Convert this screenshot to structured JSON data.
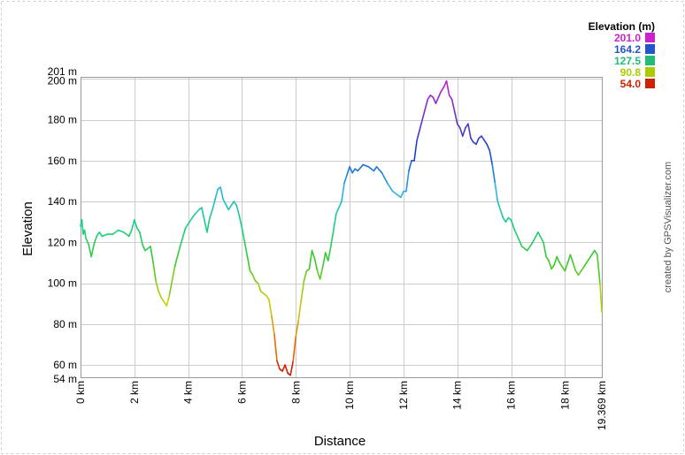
{
  "chart_data": {
    "type": "line",
    "xlabel": "Distance",
    "ylabel": "Elevation",
    "credit": "created by GPSVisualizer.com",
    "xlim": [
      0,
      19.369
    ],
    "ylim": [
      54,
      201
    ],
    "x_ticks": [
      0,
      2,
      4,
      6,
      8,
      10,
      12,
      14,
      16,
      18,
      19.369
    ],
    "x_tick_labels": [
      "0 km",
      "2 km",
      "4 km",
      "6 km",
      "8 km",
      "10 km",
      "12 km",
      "14 km",
      "16 km",
      "18 km",
      "19.369 km"
    ],
    "y_ticks": [
      54,
      60,
      80,
      100,
      120,
      140,
      160,
      180,
      200,
      201
    ],
    "y_tick_labels": [
      "54 m",
      "60 m",
      "80 m",
      "100 m",
      "120 m",
      "140 m",
      "160 m",
      "180 m",
      "200 m",
      "201 m"
    ],
    "grid": true,
    "legend": {
      "title": "Elevation (m)",
      "placement": "top-right",
      "entries": [
        {
          "label": "201.0",
          "color": "#cc22cc"
        },
        {
          "label": "164.2",
          "color": "#2255cc"
        },
        {
          "label": "127.5",
          "color": "#22bb77"
        },
        {
          "label": "90.8",
          "color": "#aacc00"
        },
        {
          "label": "54.0",
          "color": "#cc2200"
        }
      ]
    },
    "series": [
      {
        "x": [
          0,
          0.05,
          0.1,
          0.15,
          0.2,
          0.3,
          0.4,
          0.5,
          0.6,
          0.7,
          0.8,
          1.0,
          1.2,
          1.4,
          1.6,
          1.8,
          1.9,
          2.0,
          2.1,
          2.2,
          2.3,
          2.4,
          2.6,
          2.7,
          2.8,
          2.9,
          3.0,
          3.1,
          3.2,
          3.3,
          3.5,
          3.7,
          3.9,
          4.0,
          4.2,
          4.4,
          4.5,
          4.6,
          4.7,
          4.8,
          4.9,
          5.0,
          5.1,
          5.2,
          5.3,
          5.5,
          5.6,
          5.7,
          5.8,
          5.9,
          6.0,
          6.1,
          6.2,
          6.3,
          6.4,
          6.5,
          6.6,
          6.7,
          6.8,
          6.9,
          7.0,
          7.1,
          7.2,
          7.3,
          7.4,
          7.5,
          7.6,
          7.7,
          7.8,
          7.9,
          8.0,
          8.1,
          8.2,
          8.3,
          8.4,
          8.5,
          8.6,
          8.7,
          8.8,
          8.9,
          9.0,
          9.1,
          9.2,
          9.3,
          9.4,
          9.5,
          9.6,
          9.7,
          9.8,
          9.9,
          10.0,
          10.1,
          10.2,
          10.3,
          10.5,
          10.7,
          10.9,
          11.0,
          11.2,
          11.4,
          11.6,
          11.8,
          11.9,
          12.0,
          12.1,
          12.2,
          12.3,
          12.4,
          12.5,
          12.6,
          12.7,
          12.8,
          12.9,
          13.0,
          13.1,
          13.2,
          13.3,
          13.4,
          13.5,
          13.6,
          13.7,
          13.8,
          13.9,
          14.0,
          14.1,
          14.2,
          14.3,
          14.4,
          14.5,
          14.6,
          14.7,
          14.8,
          14.9,
          15.0,
          15.1,
          15.2,
          15.3,
          15.4,
          15.5,
          15.6,
          15.7,
          15.8,
          15.9,
          16.0,
          16.1,
          16.2,
          16.4,
          16.6,
          16.8,
          17.0,
          17.2,
          17.3,
          17.4,
          17.5,
          17.6,
          17.7,
          17.8,
          17.9,
          18.0,
          18.1,
          18.2,
          18.3,
          18.4,
          18.5,
          18.6,
          18.7,
          18.8,
          18.9,
          19.0,
          19.1,
          19.2,
          19.3,
          19.369
        ],
        "y": [
          128,
          131,
          124,
          126,
          122,
          119,
          113,
          119,
          123,
          125,
          123,
          124,
          124,
          126,
          125,
          123,
          126,
          131,
          127,
          125,
          119,
          116,
          118,
          110,
          101,
          96,
          93,
          91,
          89,
          94,
          108,
          118,
          127,
          129,
          133,
          136,
          137,
          131,
          125,
          132,
          136,
          141,
          146,
          147,
          141,
          136,
          138,
          140,
          138,
          133,
          127,
          120,
          113,
          106,
          104,
          101,
          100,
          96,
          95,
          94,
          92,
          84,
          75,
          62,
          58,
          57,
          60,
          56,
          55,
          62,
          74,
          82,
          92,
          101,
          106,
          107,
          116,
          112,
          106,
          102,
          108,
          115,
          111,
          118,
          126,
          134,
          137,
          140,
          149,
          153,
          157,
          154,
          156,
          155,
          158,
          157,
          155,
          157,
          154,
          149,
          145,
          143,
          142,
          145,
          145,
          155,
          160,
          160,
          170,
          175,
          180,
          185,
          190,
          192,
          191,
          188,
          191,
          194,
          196,
          199,
          192,
          190,
          184,
          178,
          176,
          172,
          176,
          178,
          171,
          169,
          168,
          171,
          172,
          170,
          168,
          165,
          158,
          149,
          140,
          136,
          132,
          130,
          132,
          131,
          127,
          124,
          118,
          116,
          120,
          125,
          120,
          113,
          111,
          107,
          109,
          113,
          110,
          108,
          106,
          110,
          114,
          110,
          106,
          104,
          106,
          108,
          110,
          112,
          114,
          116,
          114,
          100,
          86
        ]
      }
    ]
  }
}
